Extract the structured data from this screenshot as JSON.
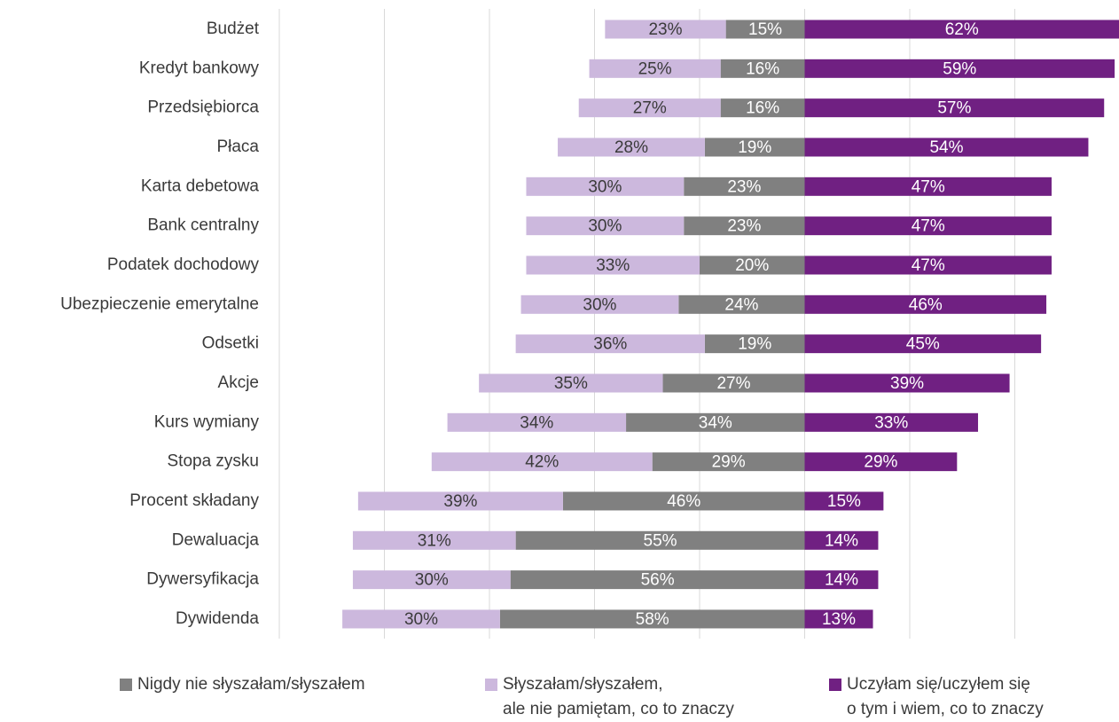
{
  "chart_data": {
    "type": "diverging-bar",
    "categories": [
      "Budżet",
      "Kredyt bankowy",
      "Przedsiębiorca",
      "Płaca",
      "Karta debetowa",
      "Bank centralny",
      "Podatek dochodowy",
      "Ubezpieczenie emerytalne",
      "Odsetki",
      "Akcje",
      "Kurs wymiany",
      "Stopa zysku",
      "Procent składany",
      "Dewaluacja",
      "Dywersyfikacja",
      "Dywidenda"
    ],
    "series": [
      {
        "name": "Nigdy nie słyszałam/słyszałem",
        "color": "#808080",
        "direction": "left",
        "label_color": "#ffffff",
        "values": [
          15,
          16,
          16,
          19,
          23,
          23,
          20,
          24,
          19,
          27,
          34,
          29,
          46,
          55,
          56,
          58
        ],
        "value_labels": [
          "15%",
          "16%",
          "16%",
          "19%",
          "23%",
          "23%",
          "20%",
          "24%",
          "19%",
          "27%",
          "34%",
          "29%",
          "46%",
          "55%",
          "56%",
          "58%"
        ]
      },
      {
        "name": "Słyszałam/słyszałem,\nale nie pamiętam, co to znaczy",
        "color": "#ccb8dd",
        "direction": "left",
        "label_color": "#3a3a3a",
        "values": [
          23,
          25,
          27,
          28,
          30,
          30,
          33,
          30,
          36,
          35,
          34,
          42,
          39,
          31,
          30,
          30
        ],
        "value_labels": [
          "23%",
          "25%",
          "27%",
          "28%",
          "30%",
          "30%",
          "33%",
          "30%",
          "36%",
          "35%",
          "34%",
          "42%",
          "39%",
          "31%",
          "30%",
          "30%"
        ]
      },
      {
        "name": "Uczyłam się/uczyłem się\no tym i wiem, co to znaczy",
        "color": "#702082",
        "direction": "right",
        "label_color": "#ffffff",
        "values": [
          62,
          59,
          57,
          54,
          47,
          47,
          47,
          46,
          45,
          39,
          33,
          29,
          15,
          14,
          14,
          13
        ],
        "value_labels": [
          "62%",
          "59%",
          "57%",
          "54%",
          "47%",
          "47%",
          "47%",
          "46%",
          "45%",
          "39%",
          "33%",
          "29%",
          "15%",
          "14%",
          "14%",
          "13%"
        ]
      }
    ],
    "xlim": [
      -100,
      60
    ],
    "xticks": [
      -100,
      -80,
      -60,
      -40,
      -20,
      0,
      20,
      40,
      60
    ],
    "grid": true
  }
}
